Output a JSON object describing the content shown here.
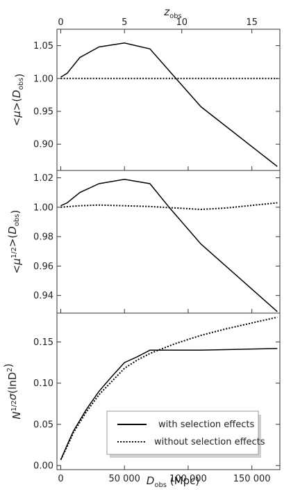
{
  "chart_data": {
    "type": "line",
    "x_label_main": "D",
    "x_label_sub": "obs",
    "x_label_unit": " (Mpc)",
    "x_ticks": [
      0,
      50000,
      100000,
      150000
    ],
    "x_tick_labels": [
      "0",
      "50 000",
      "100 000",
      "150 000"
    ],
    "xlim": [
      -3000,
      172000
    ],
    "top_axis": {
      "label_main": "z",
      "label_sub": "obs",
      "ticks_z": [
        0,
        5,
        10,
        15
      ],
      "tick_labels": [
        "0",
        "5",
        "10",
        "15"
      ],
      "z_to_D_points": [
        [
          0,
          0
        ],
        [
          5,
          50000
        ],
        [
          10,
          95000
        ],
        [
          15,
          150000
        ],
        [
          16.5,
          170000
        ]
      ]
    },
    "panels": [
      {
        "ylabel": "<μ>(D_obs)",
        "ylim": [
          0.86,
          1.075
        ],
        "y_ticks": [
          0.9,
          0.95,
          1.0,
          1.05
        ],
        "y_tick_labels": [
          "0.90",
          "0.95",
          "1.00",
          "1.05"
        ],
        "series": [
          {
            "style": "solid",
            "x": [
              0,
              5000,
              15000,
              30000,
              50000,
              70000,
              85000,
              110000,
              170000
            ],
            "y": [
              1.002,
              1.008,
              1.032,
              1.048,
              1.054,
              1.045,
              1.012,
              0.957,
              0.866
            ]
          },
          {
            "style": "dotted",
            "x": [
              0,
              170000
            ],
            "y": [
              1.0,
              1.0
            ]
          }
        ]
      },
      {
        "ylabel": "<μ^1/2>(D_obs)",
        "ylim": [
          0.928,
          1.025
        ],
        "y_ticks": [
          0.94,
          0.96,
          0.98,
          1.0,
          1.02
        ],
        "y_tick_labels": [
          "0.94",
          "0.96",
          "0.98",
          "1.00",
          "1.02"
        ],
        "series": [
          {
            "style": "solid",
            "x": [
              0,
              5000,
              15000,
              30000,
              50000,
              70000,
              85000,
              110000,
              170000
            ],
            "y": [
              1.001,
              1.003,
              1.01,
              1.016,
              1.019,
              1.016,
              1.0,
              0.975,
              0.929
            ]
          },
          {
            "style": "dotted",
            "x": [
              0,
              15000,
              30000,
              50000,
              70000,
              90000,
              110000,
              130000,
              170000
            ],
            "y": [
              1.0,
              1.001,
              1.0015,
              1.001,
              1.0005,
              0.9995,
              0.9985,
              0.9995,
              1.003
            ]
          }
        ]
      },
      {
        "ylabel": "N^1/2 σ(lnD^2)",
        "ylim": [
          -0.005,
          0.185
        ],
        "y_ticks": [
          0.0,
          0.05,
          0.1,
          0.15
        ],
        "y_tick_labels": [
          "0.00",
          "0.05",
          "0.10",
          "0.15"
        ],
        "series": [
          {
            "style": "solid",
            "name": "with selection effects",
            "x": [
              0,
              5000,
              10000,
              20000,
              30000,
              40000,
              50000,
              60000,
              70000,
              85000,
              110000,
              170000
            ],
            "y": [
              0.007,
              0.025,
              0.042,
              0.068,
              0.09,
              0.108,
              0.125,
              0.132,
              0.14,
              0.14,
              0.14,
              0.142
            ]
          },
          {
            "style": "dotted",
            "name": "without selection effects",
            "x": [
              0,
              5000,
              10000,
              20000,
              30000,
              40000,
              50000,
              60000,
              70000,
              90000,
              110000,
              130000,
              150000,
              170000
            ],
            "y": [
              0.007,
              0.023,
              0.04,
              0.065,
              0.086,
              0.102,
              0.118,
              0.128,
              0.136,
              0.148,
              0.158,
              0.166,
              0.173,
              0.18
            ]
          }
        ]
      }
    ],
    "legend": {
      "placement": "bottom-right of bottom panel",
      "entries": [
        {
          "style": "solid",
          "label": "with selection effects"
        },
        {
          "style": "dotted",
          "label": "without selection effects"
        }
      ]
    }
  }
}
